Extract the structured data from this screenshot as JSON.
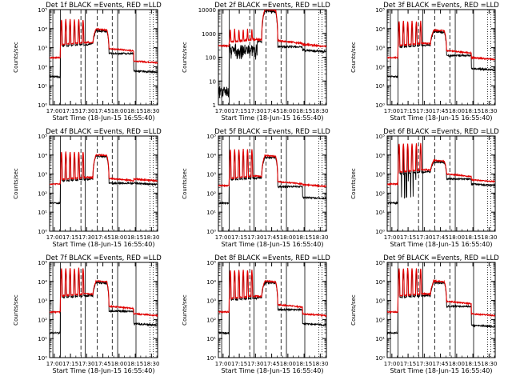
{
  "figure": {
    "colors": {
      "events": "#000000",
      "lld": "#e00000",
      "axes": "#000000"
    },
    "xtick_labels": [
      "17:00",
      "17:15",
      "17:30",
      "17:45",
      "18:00",
      "18:15",
      "18:30"
    ],
    "xlabel": "Start Time (18-Jun-15 16:55:40)",
    "ylabel": "Counts/sec"
  },
  "chart_data": [
    {
      "type": "line",
      "title": "Det 1f BLACK =Events, RED =LLD",
      "ylim": [
        1,
        100000
      ],
      "yscale": "log",
      "yticks": [
        "10⁰",
        "10¹",
        "10²",
        "10³",
        "10⁴",
        "10⁵"
      ],
      "xlim_minutes_after_start": [
        0,
        100
      ],
      "series": [
        {
          "name": "Events",
          "color": "#000000"
        },
        {
          "name": "LLD",
          "color": "#e00000"
        }
      ],
      "levels": {
        "pre": 300,
        "flare_base": 1700,
        "spike_peak": 30000,
        "hump": 9000,
        "post1": 900,
        "post2": 200,
        "pre_black": 30,
        "post_black": 60
      }
    },
    {
      "type": "line",
      "title": "Det 2f BLACK =Events, RED =LLD",
      "ylim": [
        1,
        10000
      ],
      "yscale": "log",
      "yticks": [
        "1",
        "10",
        "100",
        "1000",
        "10000"
      ],
      "xlim_minutes_after_start": [
        0,
        100
      ],
      "series": [
        {
          "name": "Events",
          "color": "#000000"
        },
        {
          "name": "LLD",
          "color": "#e00000"
        }
      ],
      "levels": {
        "pre": 300,
        "flare_base": 500,
        "spike_peak": 1500,
        "hump": 10000,
        "post1": 500,
        "post2": 350,
        "pre_black": 3,
        "post_black": 200
      }
    },
    {
      "type": "line",
      "title": "Det 3f BLACK =Events, RED =LLD",
      "ylim": [
        1,
        100000
      ],
      "yscale": "log",
      "yticks": [
        "10⁰",
        "10¹",
        "10²",
        "10³",
        "10⁴",
        "10⁵"
      ],
      "xlim_minutes_after_start": [
        0,
        100
      ],
      "series": [
        {
          "name": "Events",
          "color": "#000000"
        },
        {
          "name": "LLD",
          "color": "#e00000"
        }
      ],
      "levels": {
        "pre": 300,
        "flare_base": 1500,
        "spike_peak": 25000,
        "hump": 8000,
        "post1": 700,
        "post2": 300,
        "pre_black": 30,
        "post_black": 80
      }
    },
    {
      "type": "line",
      "title": "Det 4f BLACK =Events, RED =LLD",
      "ylim": [
        1,
        100000
      ],
      "yscale": "log",
      "yticks": [
        "10⁰",
        "10¹",
        "10²",
        "10³",
        "10⁴",
        "10⁵"
      ],
      "xlim_minutes_after_start": [
        0,
        100
      ],
      "series": [
        {
          "name": "Events",
          "color": "#000000"
        },
        {
          "name": "LLD",
          "color": "#e00000"
        }
      ],
      "levels": {
        "pre": 300,
        "flare_base": 600,
        "spike_peak": 15000,
        "hump": 10000,
        "post1": 600,
        "post2": 550,
        "pre_black": 30,
        "post_black": 330
      }
    },
    {
      "type": "line",
      "title": "Det 5f BLACK =Events, RED =LLD",
      "ylim": [
        1,
        100000
      ],
      "yscale": "log",
      "yticks": [
        "10⁰",
        "10¹",
        "10²",
        "10³",
        "10⁴",
        "10⁵"
      ],
      "xlim_minutes_after_start": [
        0,
        100
      ],
      "series": [
        {
          "name": "Events",
          "color": "#000000"
        },
        {
          "name": "LLD",
          "color": "#e00000"
        }
      ],
      "levels": {
        "pre": 250,
        "flare_base": 700,
        "spike_peak": 20000,
        "hump": 9000,
        "post1": 400,
        "post2": 280,
        "pre_black": 30,
        "post_black": 60
      }
    },
    {
      "type": "line",
      "title": "Det 6f BLACK =Events, RED =LLD",
      "ylim": [
        1,
        100000
      ],
      "yscale": "log",
      "yticks": [
        "10⁰",
        "10¹",
        "10²",
        "10³",
        "10⁴",
        "10⁵"
      ],
      "xlim_minutes_after_start": [
        0,
        100
      ],
      "series": [
        {
          "name": "Events",
          "color": "#000000"
        },
        {
          "name": "LLD",
          "color": "#e00000"
        }
      ],
      "levels": {
        "pre": 300,
        "flare_base": 1500,
        "spike_peak": 40000,
        "hump": 5000,
        "post1": 1000,
        "post2": 500,
        "pre_black": 30,
        "post_black": 300
      }
    },
    {
      "type": "line",
      "title": "Det 7f BLACK =Events, RED =LLD",
      "ylim": [
        1,
        100000
      ],
      "yscale": "log",
      "yticks": [
        "10⁰",
        "10¹",
        "10²",
        "10³",
        "10⁴",
        "10⁵"
      ],
      "xlim_minutes_after_start": [
        0,
        100
      ],
      "series": [
        {
          "name": "Events",
          "color": "#000000"
        },
        {
          "name": "LLD",
          "color": "#e00000"
        }
      ],
      "levels": {
        "pre": 250,
        "flare_base": 2000,
        "spike_peak": 50000,
        "hump": 10000,
        "post1": 500,
        "post2": 200,
        "pre_black": 20,
        "post_black": 60
      }
    },
    {
      "type": "line",
      "title": "Det 8f BLACK =Events, RED =LLD",
      "ylim": [
        1,
        100000
      ],
      "yscale": "log",
      "yticks": [
        "10⁰",
        "10¹",
        "10²",
        "10³",
        "10⁴",
        "10⁵"
      ],
      "xlim_minutes_after_start": [
        0,
        100
      ],
      "series": [
        {
          "name": "Events",
          "color": "#000000"
        },
        {
          "name": "LLD",
          "color": "#e00000"
        }
      ],
      "levels": {
        "pre": 250,
        "flare_base": 1500,
        "spike_peak": 40000,
        "hump": 10000,
        "post1": 600,
        "post2": 200,
        "pre_black": 20,
        "post_black": 60
      }
    },
    {
      "type": "line",
      "title": "Det 9f BLACK =Events, RED =LLD",
      "ylim": [
        1,
        100000
      ],
      "yscale": "log",
      "yticks": [
        "10⁰",
        "10¹",
        "10²",
        "10³",
        "10⁴",
        "10⁵"
      ],
      "xlim_minutes_after_start": [
        0,
        100
      ],
      "series": [
        {
          "name": "Events",
          "color": "#000000"
        },
        {
          "name": "LLD",
          "color": "#e00000"
        }
      ],
      "levels": {
        "pre": 250,
        "flare_base": 2000,
        "spike_peak": 50000,
        "hump": 10000,
        "post1": 900,
        "post2": 200,
        "pre_black": 20,
        "post_black": 50
      }
    }
  ]
}
